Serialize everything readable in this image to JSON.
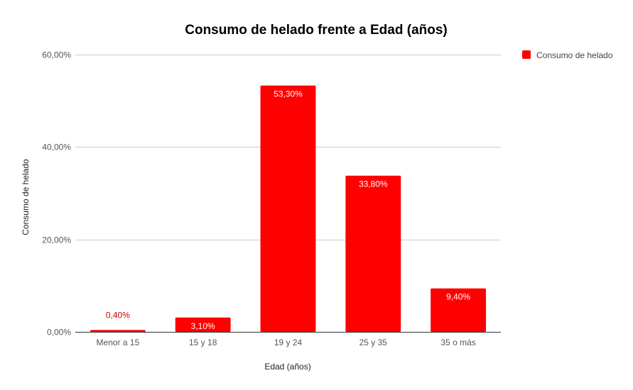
{
  "chart_data": {
    "type": "bar",
    "title": "Consumo de helado frente a Edad (años)",
    "xlabel": "Edad (años)",
    "ylabel": "Consumo de helado",
    "categories": [
      "Menor a 15",
      "15 y 18",
      "19 y 24",
      "25 y 35",
      "35 o más"
    ],
    "series": [
      {
        "name": "Consumo de helado",
        "values": [
          0.4,
          3.1,
          53.3,
          33.8,
          9.4
        ],
        "data_labels": [
          "0,40%",
          "3,10%",
          "53,30%",
          "33,80%",
          "9,40%"
        ]
      }
    ],
    "ylim": [
      0,
      60
    ],
    "yticks": [
      0,
      20,
      40,
      60
    ],
    "ytick_labels": [
      "0,00%",
      "20,00%",
      "40,00%",
      "60,00%"
    ],
    "grid": true,
    "legend_position": "top-right",
    "colors": {
      "bar": "#ff0000",
      "grid": "#cccccc",
      "baseline": "#333333",
      "label_inside": "#ffffff",
      "label_outside": "#cc0000"
    }
  }
}
